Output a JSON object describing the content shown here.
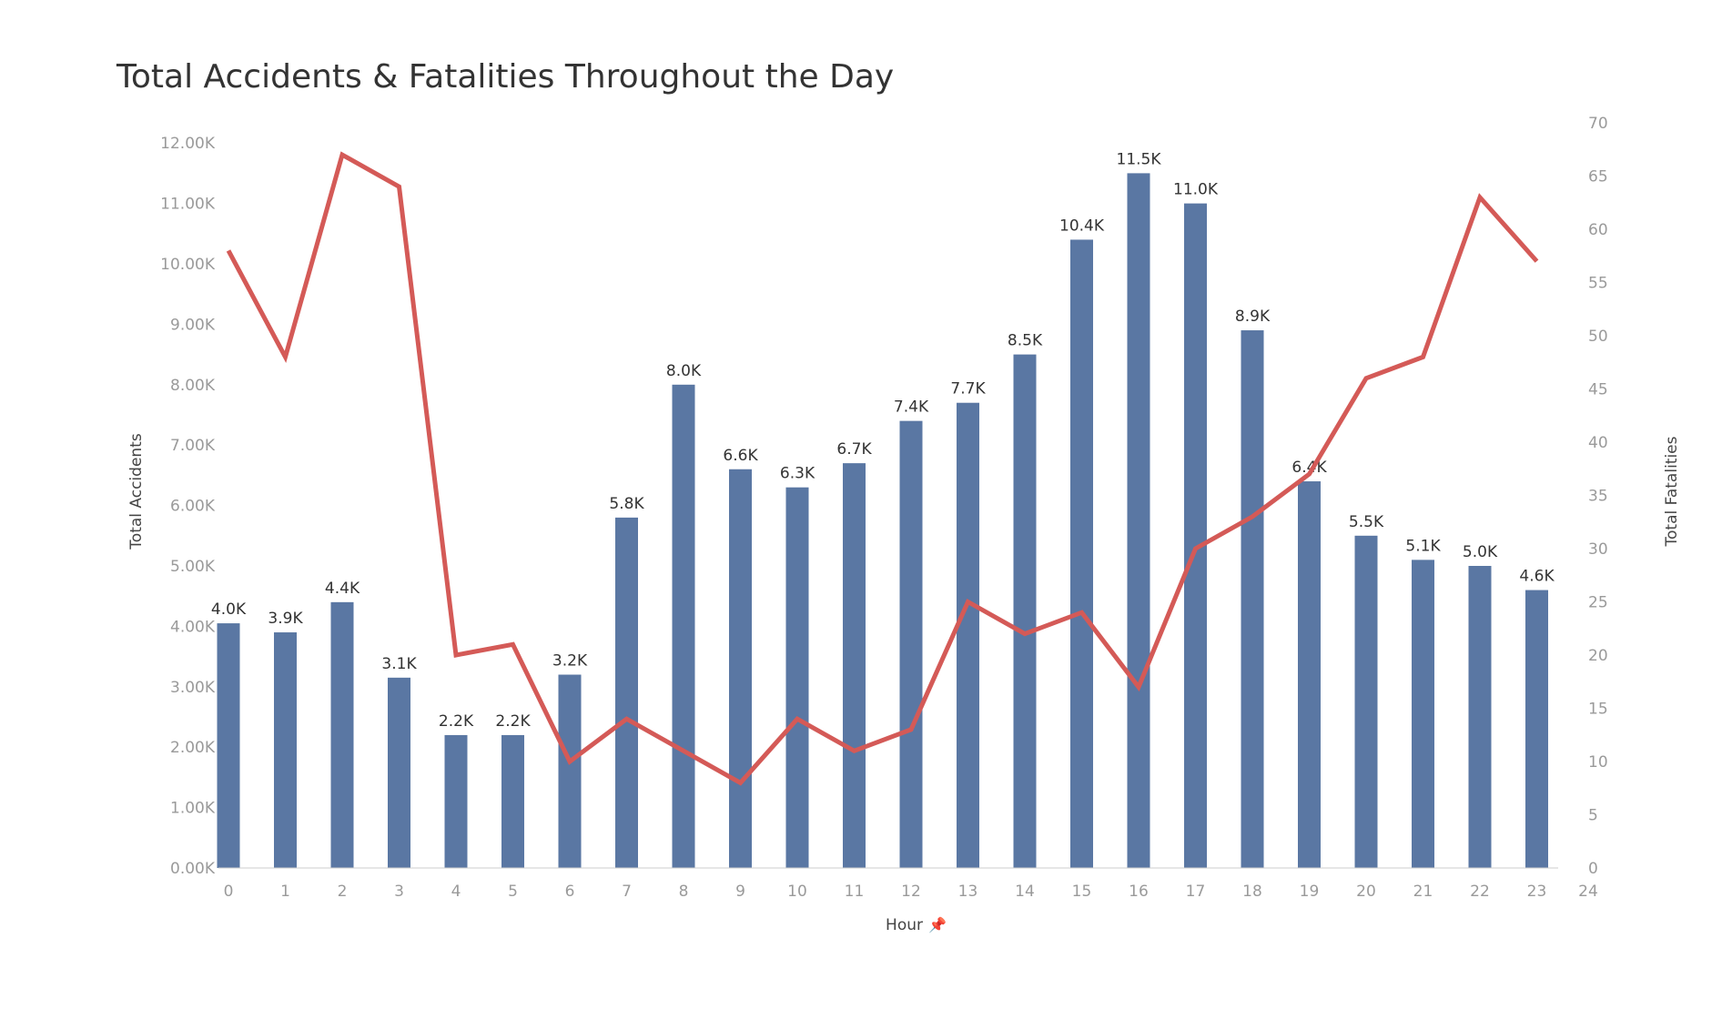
{
  "chart_data": {
    "type": "bar",
    "title": "Total Accidents & Fatalities Throughout the Day",
    "xlabel": "Hour",
    "xlabel_icon": "pin-icon",
    "ylabel": "Total Accidents",
    "y2label": "Total Fatalities",
    "categories": [
      0,
      1,
      2,
      3,
      4,
      5,
      6,
      7,
      8,
      9,
      10,
      11,
      12,
      13,
      14,
      15,
      16,
      17,
      18,
      19,
      20,
      21,
      22,
      23
    ],
    "x_ticks": [
      "0",
      "1",
      "2",
      "3",
      "4",
      "5",
      "6",
      "7",
      "8",
      "9",
      "10",
      "11",
      "12",
      "13",
      "14",
      "15",
      "16",
      "17",
      "18",
      "19",
      "20",
      "21",
      "22",
      "23",
      "24"
    ],
    "xlim": [
      0,
      24
    ],
    "ylim": [
      0,
      12000
    ],
    "y_ticks": [
      "0.00K",
      "1.00K",
      "2.00K",
      "3.00K",
      "4.00K",
      "5.00K",
      "6.00K",
      "7.00K",
      "8.00K",
      "9.00K",
      "10.00K",
      "11.00K",
      "12.00K"
    ],
    "y2lim": [
      0,
      70
    ],
    "y2_ticks": [
      "0",
      "5",
      "10",
      "15",
      "20",
      "25",
      "30",
      "35",
      "40",
      "45",
      "50",
      "55",
      "60",
      "65",
      "70"
    ],
    "grid": false,
    "series": [
      {
        "name": "Total Accidents",
        "type": "bar",
        "axis": "left",
        "color": "#5a77a3",
        "values": [
          4050,
          3900,
          4400,
          3150,
          2200,
          2200,
          3200,
          5800,
          8000,
          6600,
          6300,
          6700,
          7400,
          7700,
          8500,
          10400,
          11500,
          11000,
          8900,
          6400,
          5500,
          5100,
          5000,
          4600
        ],
        "labels": [
          "4.0K",
          "3.9K",
          "4.4K",
          "3.1K",
          "2.2K",
          "2.2K",
          "3.2K",
          "5.8K",
          "8.0K",
          "6.6K",
          "6.3K",
          "6.7K",
          "7.4K",
          "7.7K",
          "8.5K",
          "10.4K",
          "11.5K",
          "11.0K",
          "8.9K",
          "6.4K",
          "5.5K",
          "5.1K",
          "5.0K",
          "4.6K"
        ]
      },
      {
        "name": "Total Fatalities",
        "type": "line",
        "axis": "right",
        "color": "#d45a57",
        "values": [
          58,
          48,
          67,
          64,
          20,
          21,
          10,
          14,
          11,
          8,
          14,
          11,
          13,
          25,
          22,
          24,
          17,
          30,
          33,
          37,
          46,
          48,
          63,
          57
        ]
      }
    ]
  }
}
